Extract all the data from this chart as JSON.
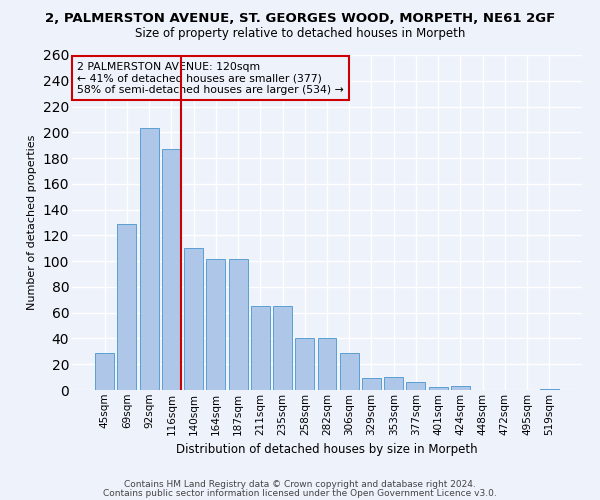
{
  "title": "2, PALMERSTON AVENUE, ST. GEORGES WOOD, MORPETH, NE61 2GF",
  "subtitle": "Size of property relative to detached houses in Morpeth",
  "xlabel": "Distribution of detached houses by size in Morpeth",
  "ylabel": "Number of detached properties",
  "bar_values": [
    29,
    129,
    203,
    187,
    110,
    102,
    102,
    65,
    65,
    40,
    40,
    29,
    9,
    10,
    6,
    2,
    3,
    0,
    0,
    0,
    1
  ],
  "bar_labels": [
    "45sqm",
    "69sqm",
    "92sqm",
    "116sqm",
    "140sqm",
    "164sqm",
    "187sqm",
    "211sqm",
    "235sqm",
    "258sqm",
    "282sqm",
    "306sqm",
    "329sqm",
    "353sqm",
    "377sqm",
    "401sqm",
    "424sqm",
    "448sqm",
    "472sqm",
    "495sqm",
    "519sqm"
  ],
  "bar_color": "#aec6e8",
  "bar_edge_color": "#5a9fd4",
  "background_color": "#eef2fb",
  "grid_color": "#ffffff",
  "annotation_text": "2 PALMERSTON AVENUE: 120sqm\n← 41% of detached houses are smaller (377)\n58% of semi-detached houses are larger (534) →",
  "red_line_bin": 3,
  "red_box_color": "#cc0000",
  "ylim": [
    0,
    260
  ],
  "yticks": [
    0,
    20,
    40,
    60,
    80,
    100,
    120,
    140,
    160,
    180,
    200,
    220,
    240,
    260
  ],
  "footnote1": "Contains HM Land Registry data © Crown copyright and database right 2024.",
  "footnote2": "Contains public sector information licensed under the Open Government Licence v3.0."
}
